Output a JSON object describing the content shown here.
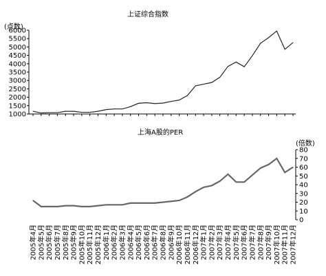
{
  "chart_data": [
    {
      "type": "line",
      "title": "上证综合指数",
      "ylabel": "(点数)",
      "ylim": [
        1000,
        6000
      ],
      "yticks": [
        1000,
        1500,
        2000,
        2500,
        3000,
        3500,
        4000,
        4500,
        5000,
        5500,
        6000
      ],
      "x": [
        "2005年4月",
        "2005年5月",
        "2005年6月",
        "2005年7月",
        "2005年8月",
        "2005年9月",
        "2005年10月",
        "2005年11月",
        "2005年12月",
        "2006年1月",
        "2006年2月",
        "2006年3月",
        "2006年4月",
        "2006年5月",
        "2006年6月",
        "2006年7月",
        "2006年8月",
        "2006年9月",
        "2006年10月",
        "2006年11月",
        "2006年12月",
        "2007年1月",
        "2007年2月",
        "2007年3月",
        "2007年4月",
        "2007年5月",
        "2007年6月",
        "2007年7月",
        "2007年8月",
        "2007年9月",
        "2007年10月",
        "2007年11月",
        "2007年12月"
      ],
      "series": [
        {
          "values": [
            1160,
            1060,
            1080,
            1080,
            1160,
            1160,
            1100,
            1100,
            1160,
            1260,
            1300,
            1300,
            1440,
            1640,
            1670,
            1620,
            1650,
            1750,
            1830,
            2100,
            2680,
            2780,
            2880,
            3190,
            3840,
            4100,
            3820,
            4480,
            5220,
            5560,
            5950,
            4860,
            5260
          ]
        }
      ],
      "grid": false,
      "legend": "none"
    },
    {
      "type": "line",
      "title": "上海A股的PER",
      "ylabel": "(倍数)",
      "y_axis_side": "right",
      "ylim": [
        0,
        80
      ],
      "yticks": [
        0,
        10,
        20,
        30,
        40,
        50,
        60,
        70,
        80
      ],
      "x": [
        "2005年4月",
        "2005年5月",
        "2005年6月",
        "2005年7月",
        "2005年8月",
        "2005年9月",
        "2005年10月",
        "2005年11月",
        "2005年12月",
        "2006年1月",
        "2006年2月",
        "2006年3月",
        "2006年4月",
        "2006年5月",
        "2006年6月",
        "2006年7月",
        "2006年8月",
        "2006年9月",
        "2006年10月",
        "2006年11月",
        "2006年12月",
        "2007年1月",
        "2007年2月",
        "2007年3月",
        "2007年4月",
        "2007年5月",
        "2007年6月",
        "2007年7月",
        "2007年8月",
        "2007年9月",
        "2007年10月",
        "2007年11月",
        "2007年12月"
      ],
      "series": [
        {
          "values": [
            22,
            15,
            15,
            15,
            16,
            16,
            15,
            15,
            16,
            17,
            17,
            17,
            19,
            19,
            19,
            19,
            20,
            21,
            22,
            26,
            32,
            37,
            39,
            44,
            52,
            43,
            43,
            51,
            59,
            63,
            70,
            54,
            60
          ]
        }
      ],
      "grid": false,
      "legend": "none"
    }
  ]
}
